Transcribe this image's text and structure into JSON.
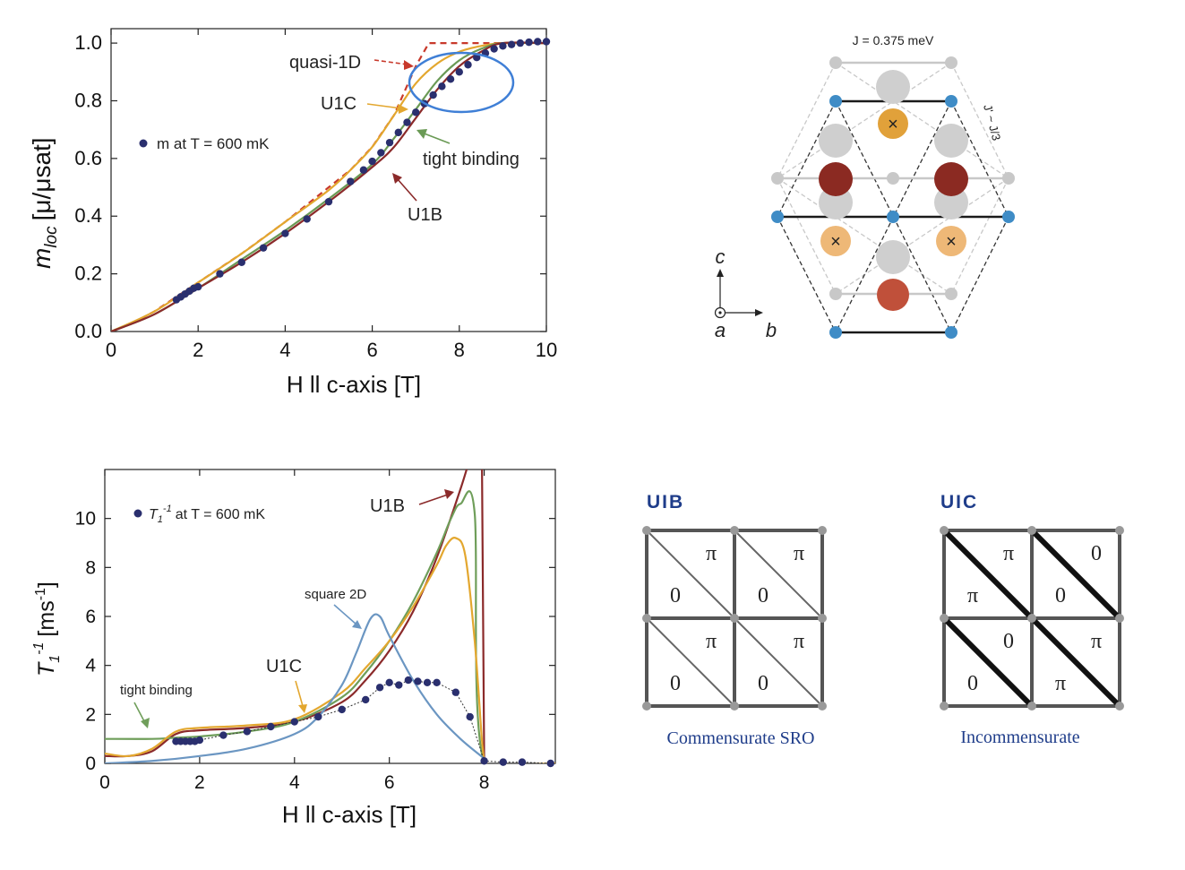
{
  "chart_data": [
    {
      "type": "line",
      "panel": "magnetization",
      "xlabel": "H ll c-axis [T]",
      "ylabel_main": "m",
      "ylabel_sub": "loc",
      "ylabel_bracket": "[μ/μsat]",
      "xlim": [
        0,
        10
      ],
      "ylim": [
        0,
        1.05
      ],
      "xticks": [
        "0",
        "2",
        "4",
        "6",
        "8",
        "10"
      ],
      "yticks": [
        "0.0",
        "0.2",
        "0.4",
        "0.6",
        "0.8",
        "1.0"
      ],
      "legend_text": "m at T = 600 mK",
      "annotations": [
        "quasi-1D",
        "U1C",
        "tight binding",
        "U1B"
      ],
      "series": [
        {
          "name": "quasi-1D",
          "style": "dashed",
          "color": "#c8392b",
          "x": [
            0,
            0.5,
            1,
            2,
            3,
            4,
            5,
            5.5,
            6,
            6.5,
            7,
            7.3,
            8,
            9,
            10
          ],
          "y": [
            0,
            0.03,
            0.07,
            0.17,
            0.27,
            0.38,
            0.5,
            0.56,
            0.64,
            0.75,
            0.92,
            1.0,
            1.0,
            1.0,
            1.0
          ]
        },
        {
          "name": "U1C",
          "color": "#e3a72f",
          "x": [
            0,
            1,
            2,
            3,
            4,
            5,
            5.5,
            6,
            6.5,
            7,
            7.5,
            8,
            8.5,
            9,
            10
          ],
          "y": [
            0,
            0.07,
            0.17,
            0.27,
            0.38,
            0.49,
            0.56,
            0.64,
            0.75,
            0.86,
            0.93,
            0.97,
            0.99,
            1.0,
            1.0
          ]
        },
        {
          "name": "tight binding",
          "color": "#6a9a55",
          "x": [
            0,
            1,
            2,
            3,
            4,
            5,
            6,
            6.5,
            7,
            7.5,
            8,
            8.5,
            9,
            10
          ],
          "y": [
            0,
            0.06,
            0.15,
            0.25,
            0.35,
            0.46,
            0.58,
            0.67,
            0.77,
            0.87,
            0.94,
            0.98,
            1.0,
            1.0
          ]
        },
        {
          "name": "U1B",
          "color": "#8b2a2a",
          "x": [
            0,
            1,
            2,
            3,
            4,
            5,
            6,
            6.5,
            7,
            7.5,
            8,
            8.5,
            9,
            10
          ],
          "y": [
            0,
            0.06,
            0.15,
            0.24,
            0.34,
            0.45,
            0.57,
            0.64,
            0.74,
            0.84,
            0.92,
            0.97,
            1.0,
            1.0
          ]
        },
        {
          "name": "m at T = 600 mK",
          "style": "points",
          "color": "#2a2f6e",
          "x": [
            1.5,
            1.6,
            1.7,
            1.8,
            1.9,
            2.0,
            2.5,
            3.0,
            3.5,
            4.0,
            4.5,
            5.0,
            5.5,
            5.8,
            6.0,
            6.2,
            6.4,
            6.6,
            6.8,
            7.0,
            7.2,
            7.4,
            7.6,
            7.8,
            8.0,
            8.2,
            8.4,
            8.6,
            8.8,
            9.0,
            9.2,
            9.4,
            9.6,
            9.8,
            10.0
          ],
          "y": [
            0.11,
            0.12,
            0.13,
            0.14,
            0.15,
            0.155,
            0.2,
            0.24,
            0.29,
            0.34,
            0.39,
            0.45,
            0.52,
            0.56,
            0.59,
            0.62,
            0.655,
            0.69,
            0.725,
            0.76,
            0.79,
            0.82,
            0.85,
            0.875,
            0.9,
            0.925,
            0.95,
            0.965,
            0.98,
            0.99,
            0.995,
            1.0,
            1.003,
            1.005,
            1.005
          ]
        }
      ]
    },
    {
      "type": "line",
      "panel": "relaxation",
      "xlabel": "H ll c-axis [T]",
      "ylabel_main": "T",
      "ylabel_sub": "1",
      "ylabel_sup": "-1",
      "ylabel_unit": "[ms",
      "ylabel_unit_sup": "-1",
      "ylabel_unit_end": "]",
      "xlim": [
        0,
        9.5
      ],
      "ylim": [
        0,
        12
      ],
      "xticks": [
        "0",
        "2",
        "4",
        "6",
        "8"
      ],
      "yticks": [
        "0",
        "2",
        "4",
        "6",
        "8",
        "10"
      ],
      "legend_main": "T",
      "legend_sub": "1",
      "legend_sup": "-1",
      "legend_rest": "at T = 600 mK",
      "annotations": [
        "U1B",
        "square 2D",
        "U1C",
        "tight binding"
      ],
      "series": [
        {
          "name": "U1B",
          "color": "#8b2a2a",
          "x": [
            0,
            0.5,
            1,
            1.5,
            2,
            3,
            4,
            5,
            5.5,
            6,
            6.5,
            7,
            7.5,
            7.8,
            7.95,
            8,
            9.5
          ],
          "y": [
            0.3,
            0.3,
            0.5,
            1.2,
            1.35,
            1.45,
            1.7,
            2.5,
            3.4,
            4.6,
            6.2,
            8.4,
            11.2,
            13,
            13,
            0,
            0
          ]
        },
        {
          "name": "tight binding",
          "color": "#6f9e5a",
          "x": [
            0,
            1,
            1.5,
            2,
            3,
            4,
            5,
            5.5,
            6,
            6.5,
            7,
            7.3,
            7.5,
            7.8,
            8,
            9.5
          ],
          "y": [
            1.0,
            1.0,
            1.05,
            1.1,
            1.3,
            1.7,
            2.7,
            3.7,
            5.0,
            6.6,
            8.6,
            10.0,
            10.6,
            10.2,
            0,
            0
          ]
        },
        {
          "name": "U1C",
          "color": "#e3a72f",
          "x": [
            0,
            0.5,
            1,
            1.5,
            2,
            3,
            4,
            5,
            5.5,
            6,
            6.5,
            7,
            7.2,
            7.4,
            7.6,
            7.8,
            7.95,
            8,
            9.5
          ],
          "y": [
            0.4,
            0.3,
            0.6,
            1.3,
            1.45,
            1.55,
            1.8,
            2.9,
            3.9,
            5.0,
            6.4,
            8.1,
            8.9,
            9.2,
            8.5,
            5.0,
            1.0,
            0,
            0
          ]
        },
        {
          "name": "square 2D",
          "color": "#6b96c2",
          "x": [
            0,
            1,
            2,
            3,
            4,
            4.5,
            5,
            5.3,
            5.6,
            5.8,
            6,
            6.5,
            7,
            7.5,
            8
          ],
          "y": [
            0,
            0.1,
            0.3,
            0.6,
            1.2,
            1.9,
            3.2,
            4.5,
            5.9,
            6.0,
            5.2,
            3.4,
            2.0,
            1.0,
            0.2
          ]
        },
        {
          "name": "T1-1 at T = 600 mK",
          "style": "points",
          "color": "#2a2f6e",
          "x": [
            1.5,
            1.6,
            1.7,
            1.8,
            1.9,
            2.0,
            2.5,
            3.0,
            3.5,
            4.0,
            4.5,
            5.0,
            5.5,
            5.8,
            6.0,
            6.2,
            6.4,
            6.6,
            6.8,
            7.0,
            7.4,
            7.7,
            8.0,
            8.4,
            8.8,
            9.4
          ],
          "y": [
            0.9,
            0.9,
            0.9,
            0.9,
            0.9,
            0.95,
            1.15,
            1.3,
            1.5,
            1.7,
            1.9,
            2.2,
            2.6,
            3.1,
            3.3,
            3.2,
            3.4,
            3.35,
            3.3,
            3.3,
            2.9,
            1.9,
            0.1,
            0.05,
            0.05,
            0.0
          ]
        }
      ]
    }
  ],
  "lattice": {
    "top_label": "J = 0.375 meV",
    "side_label": "J' ~ J/3",
    "axis_c": "c",
    "axis_a": "a",
    "axis_b": "b",
    "cross_symbol": "×"
  },
  "boxes": {
    "left_title": "UIB",
    "right_title": "UIC",
    "left_caption": "Commensurate SRO",
    "right_caption": "Incommensurate",
    "pi": "π",
    "zero": "0",
    "left_labels": [
      [
        "π",
        "0"
      ],
      [
        "π",
        "0"
      ],
      [
        "π",
        "0"
      ],
      [
        "π",
        "0"
      ]
    ],
    "right_labels": [
      [
        "π",
        "π"
      ],
      [
        "0",
        "0"
      ],
      [
        "0",
        "0"
      ],
      [
        "π",
        "π"
      ]
    ]
  },
  "colors": {
    "navy_points": "#2a2f6e",
    "blue_ellipse": "#3f7fd6",
    "lattice_blue": "#3f8cc6",
    "dark_red_site": "#8b2a22",
    "orange_site": "#e8a44a",
    "title_blue": "#1f3d8a"
  }
}
